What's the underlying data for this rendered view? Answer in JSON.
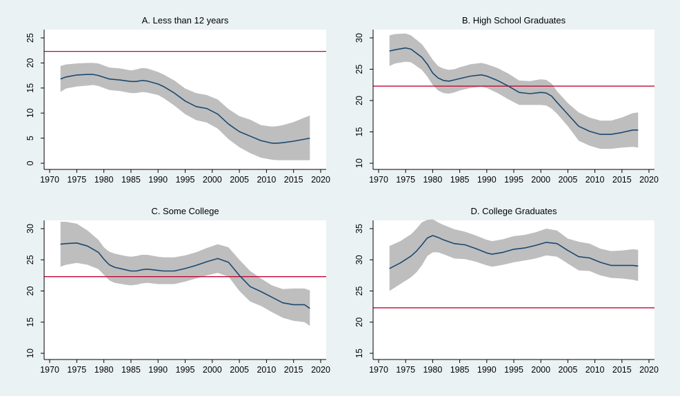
{
  "colors": {
    "background": "#eaf2f3",
    "plot_background": "#ffffff",
    "band": "#bebebe",
    "line": "#1a476f",
    "reference": "#c10534",
    "axis": "#000000",
    "text": "#000000"
  },
  "chart_data": [
    {
      "type": "area",
      "title": "A. Less than 12 years",
      "xlabel": "",
      "ylabel": "",
      "xlim": [
        1970,
        2020
      ],
      "ylim": [
        0,
        25
      ],
      "xticks": [
        "1970",
        "1975",
        "1980",
        "1985",
        "1990",
        "1995",
        "2000",
        "2005",
        "2010",
        "2015",
        "2020"
      ],
      "yticks": [
        "0",
        "5",
        "10",
        "15",
        "20",
        "25"
      ],
      "grid": false,
      "legend": "none",
      "reference_line": 22.3,
      "x": [
        1972,
        1973,
        1975,
        1977,
        1978,
        1979,
        1981,
        1983,
        1985,
        1986,
        1987,
        1988,
        1990,
        1991,
        1993,
        1995,
        1997,
        1999,
        2001,
        2003,
        2005,
        2007,
        2009,
        2011,
        2012,
        2013,
        2015,
        2017,
        2018
      ],
      "series": [
        {
          "role": "upper",
          "values": [
            19.4,
            19.7,
            19.9,
            20.0,
            20.0,
            19.9,
            19.1,
            18.9,
            18.5,
            18.7,
            19.0,
            18.9,
            18.2,
            17.7,
            16.5,
            14.9,
            14.0,
            13.6,
            12.7,
            10.8,
            9.4,
            8.7,
            7.6,
            7.3,
            7.4,
            7.6,
            8.2,
            9.1,
            9.5
          ]
        },
        {
          "role": "estimate",
          "values": [
            16.8,
            17.2,
            17.6,
            17.7,
            17.7,
            17.5,
            16.8,
            16.6,
            16.3,
            16.3,
            16.5,
            16.4,
            15.8,
            15.3,
            14.0,
            12.4,
            11.3,
            10.9,
            9.8,
            7.8,
            6.3,
            5.4,
            4.5,
            4.0,
            4.0,
            4.1,
            4.4,
            4.8,
            5.0
          ]
        },
        {
          "role": "lower",
          "values": [
            14.2,
            14.9,
            15.3,
            15.5,
            15.6,
            15.4,
            14.6,
            14.4,
            14.0,
            14.0,
            14.2,
            14.1,
            13.6,
            13.0,
            11.5,
            9.8,
            8.6,
            8.1,
            6.9,
            4.8,
            3.2,
            2.0,
            1.1,
            0.7,
            0.6,
            0.6,
            0.6,
            0.6,
            0.6
          ]
        }
      ]
    },
    {
      "type": "area",
      "title": "B.  High School Graduates",
      "xlabel": "",
      "ylabel": "",
      "xlim": [
        1970,
        2020
      ],
      "ylim": [
        10,
        30
      ],
      "xticks": [
        "1970",
        "1975",
        "1980",
        "1985",
        "1990",
        "1995",
        "2000",
        "2005",
        "2010",
        "2015",
        "2020"
      ],
      "yticks": [
        "10",
        "15",
        "20",
        "25",
        "30"
      ],
      "grid": false,
      "legend": "none",
      "reference_line": 22.3,
      "x": [
        1972,
        1973,
        1975,
        1976,
        1978,
        1979,
        1980,
        1981,
        1982,
        1983,
        1984,
        1985,
        1987,
        1989,
        1990,
        1992,
        1994,
        1996,
        1998,
        2000,
        2001,
        2002,
        2003,
        2005,
        2007,
        2009,
        2011,
        2013,
        2015,
        2017,
        2018
      ],
      "series": [
        {
          "role": "upper",
          "values": [
            30.4,
            30.6,
            30.7,
            30.4,
            29.0,
            27.8,
            26.5,
            25.5,
            25.1,
            24.9,
            25.0,
            25.3,
            25.8,
            26.0,
            25.8,
            25.2,
            24.3,
            23.2,
            23.1,
            23.4,
            23.3,
            22.7,
            21.5,
            19.6,
            18.1,
            17.3,
            16.8,
            16.8,
            17.3,
            18.0,
            18.1
          ]
        },
        {
          "role": "estimate",
          "values": [
            27.9,
            28.1,
            28.4,
            28.2,
            26.9,
            25.8,
            24.4,
            23.6,
            23.2,
            23.1,
            23.3,
            23.5,
            23.9,
            24.1,
            23.9,
            23.2,
            22.3,
            21.3,
            21.1,
            21.3,
            21.2,
            20.7,
            19.7,
            17.8,
            15.9,
            15.1,
            14.6,
            14.6,
            14.9,
            15.3,
            15.3
          ]
        },
        {
          "role": "lower",
          "values": [
            25.5,
            25.9,
            26.2,
            26.1,
            24.9,
            23.8,
            22.5,
            21.6,
            21.2,
            21.1,
            21.3,
            21.6,
            22.0,
            22.2,
            22.0,
            21.2,
            20.2,
            19.3,
            19.3,
            19.3,
            19.2,
            18.7,
            17.9,
            15.9,
            13.6,
            12.8,
            12.3,
            12.3,
            12.5,
            12.6,
            12.5
          ]
        }
      ]
    },
    {
      "type": "area",
      "title": "C. Some College",
      "xlabel": "",
      "ylabel": "",
      "xlim": [
        1970,
        2020
      ],
      "ylim": [
        10,
        30
      ],
      "xticks": [
        "1970",
        "1975",
        "1980",
        "1985",
        "1990",
        "1995",
        "2000",
        "2005",
        "2010",
        "2015",
        "2020"
      ],
      "yticks": [
        "10",
        "15",
        "20",
        "25",
        "30"
      ],
      "grid": false,
      "legend": "none",
      "reference_line": 22.3,
      "x": [
        1972,
        1973,
        1975,
        1977,
        1979,
        1980,
        1981,
        1982,
        1984,
        1985,
        1986,
        1987,
        1988,
        1990,
        1991,
        1993,
        1995,
        1997,
        1999,
        2001,
        2003,
        2005,
        2007,
        2009,
        2011,
        2013,
        2015,
        2017,
        2018
      ],
      "series": [
        {
          "role": "upper",
          "values": [
            31.1,
            31.1,
            30.8,
            29.7,
            28.2,
            27.0,
            26.3,
            26.0,
            25.6,
            25.5,
            25.6,
            25.8,
            25.8,
            25.5,
            25.4,
            25.4,
            25.7,
            26.2,
            26.9,
            27.5,
            27.0,
            25.0,
            23.2,
            22.0,
            20.9,
            20.3,
            20.4,
            20.4,
            20.1
          ]
        },
        {
          "role": "estimate",
          "values": [
            27.5,
            27.6,
            27.7,
            27.2,
            26.2,
            25.1,
            24.2,
            23.8,
            23.4,
            23.2,
            23.2,
            23.4,
            23.5,
            23.3,
            23.2,
            23.2,
            23.6,
            24.1,
            24.7,
            25.2,
            24.6,
            22.5,
            20.7,
            19.9,
            19.0,
            18.1,
            17.8,
            17.8,
            17.2
          ]
        },
        {
          "role": "lower",
          "values": [
            23.9,
            24.2,
            24.5,
            24.2,
            23.5,
            22.6,
            21.7,
            21.3,
            21.0,
            20.9,
            21.0,
            21.2,
            21.3,
            21.1,
            21.1,
            21.1,
            21.5,
            22.0,
            22.5,
            22.9,
            22.3,
            20.0,
            18.3,
            17.6,
            16.6,
            15.7,
            15.2,
            15.0,
            14.4
          ]
        }
      ]
    },
    {
      "type": "area",
      "title": "D. College Graduates",
      "xlabel": "",
      "ylabel": "",
      "xlim": [
        1970,
        2020
      ],
      "ylim": [
        15,
        35
      ],
      "xticks": [
        "1970",
        "1975",
        "1980",
        "1985",
        "1990",
        "1995",
        "2000",
        "2005",
        "2010",
        "2015",
        "2020"
      ],
      "yticks": [
        "15",
        "20",
        "25",
        "30",
        "35"
      ],
      "grid": false,
      "legend": "none",
      "reference_line": 22.3,
      "x": [
        1972,
        1974,
        1976,
        1977,
        1978,
        1979,
        1980,
        1981,
        1982,
        1984,
        1986,
        1988,
        1990,
        1991,
        1993,
        1995,
        1997,
        1999,
        2001,
        2003,
        2005,
        2007,
        2009,
        2011,
        2013,
        2015,
        2017,
        2018
      ],
      "series": [
        {
          "role": "upper",
          "values": [
            32.2,
            33.0,
            34.1,
            35.0,
            36.0,
            36.4,
            36.5,
            36.0,
            35.6,
            34.9,
            34.5,
            33.9,
            33.2,
            33.0,
            33.3,
            33.8,
            34.0,
            34.4,
            35.0,
            34.7,
            33.4,
            32.9,
            32.6,
            31.8,
            31.4,
            31.5,
            31.7,
            31.6
          ]
        },
        {
          "role": "estimate",
          "values": [
            28.6,
            29.5,
            30.6,
            31.4,
            32.4,
            33.5,
            33.9,
            33.6,
            33.2,
            32.6,
            32.4,
            31.8,
            31.1,
            30.9,
            31.2,
            31.7,
            31.9,
            32.3,
            32.8,
            32.6,
            31.5,
            30.5,
            30.3,
            29.6,
            29.1,
            29.1,
            29.1,
            29.0
          ]
        },
        {
          "role": "lower",
          "values": [
            25.0,
            26.1,
            27.2,
            28.0,
            29.1,
            30.6,
            31.2,
            31.2,
            30.9,
            30.2,
            30.1,
            29.7,
            29.1,
            28.9,
            29.2,
            29.6,
            29.9,
            30.2,
            30.7,
            30.5,
            29.4,
            28.3,
            28.2,
            27.5,
            27.1,
            27.0,
            26.8,
            26.6
          ]
        }
      ]
    }
  ]
}
